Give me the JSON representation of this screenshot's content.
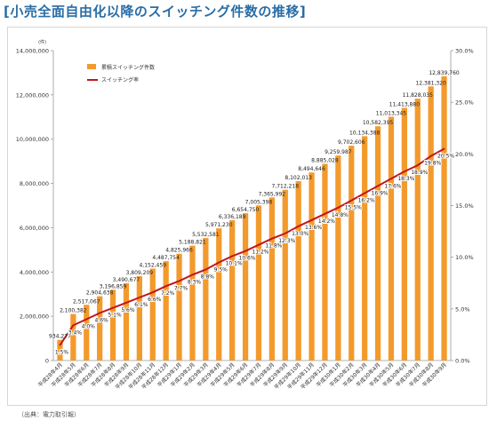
{
  "title": "[小売全面自由化以降のスイッチング件数の推移]",
  "source": "（出典：電力取引報）",
  "chart_data": {
    "type": "bar",
    "y_unit_label": "(件)",
    "categories": [
      "平成28年4月",
      "平成28年5月",
      "平成28年6月",
      "平成28年7月",
      "平成28年8月",
      "平成28年9月",
      "平成28年10月",
      "平成28年11月",
      "平成28年12月",
      "平成29年1月",
      "平成29年2月",
      "平成29年3月",
      "平成29年4月",
      "平成29年5月",
      "平成29年6月",
      "平成29年7月",
      "平成29年8月",
      "平成29年9月",
      "平成29年10月",
      "平成29年11月",
      "平成29年12月",
      "平成30年1月",
      "平成30年2月",
      "平成30年3月",
      "平成30年4月",
      "平成30年5月",
      "平成30年6月",
      "平成30年7月",
      "平成30年8月",
      "平成30年9月"
    ],
    "series": [
      {
        "name": "累積スイッチング件数",
        "axis": "left",
        "color": "#f39a2c",
        "values": [
          934277,
          2100382,
          2517067,
          2904638,
          3196859,
          3490677,
          3809209,
          4152459,
          4487754,
          4825966,
          5188821,
          5532581,
          5971230,
          6336189,
          6654750,
          7005398,
          7365992,
          7712218,
          8102013,
          8494646,
          8885028,
          9259987,
          9702606,
          10134388,
          10582395,
          11013345,
          11413880,
          11828035,
          12381320,
          12839760
        ],
        "value_labels": [
          "934,277",
          "2,100,382",
          "2,517,067",
          "2,904,638",
          "3,196,859",
          "3,490,677",
          "3,809,209",
          "4,152,459",
          "4,487,754",
          "4,825,966",
          "5,188,821",
          "5,532,581",
          "5,971,230",
          "6,336,189",
          "6,654,750",
          "7,005,398",
          "7,365,992",
          "7,712,218",
          "8,102,013",
          "8,494,646",
          "8,885,028",
          "9,259,987",
          "9,702,606",
          "10,134,388",
          "10,582,395",
          "11,013,345",
          "11,413,880",
          "11,828,035",
          "12,381,320",
          "12,839,760"
        ]
      },
      {
        "name": "スイッチング率",
        "type": "line",
        "axis": "right",
        "color": "#c0161c",
        "values": [
          1.5,
          3.4,
          4.0,
          4.6,
          5.1,
          5.6,
          6.1,
          6.6,
          7.2,
          7.7,
          8.3,
          8.8,
          9.5,
          10.1,
          10.6,
          11.2,
          11.8,
          12.3,
          13.0,
          13.6,
          14.2,
          14.8,
          15.5,
          16.2,
          16.9,
          17.6,
          18.3,
          18.9,
          19.8,
          20.5
        ],
        "value_labels": [
          "1.5%",
          "3.4%",
          "4.0%",
          "4.6%",
          "5.1%",
          "5.6%",
          "6.1%",
          "6.6%",
          "7.2%",
          "7.7%",
          "8.3%",
          "8.8%",
          "9.5%",
          "10.1%",
          "10.6%",
          "11.2%",
          "11.8%",
          "12.3%",
          "13.0%",
          "13.6%",
          "14.2%",
          "14.8%",
          "15.5%",
          "16.2%",
          "16.9%",
          "17.6%",
          "18.3%",
          "18.9%",
          "19.8%",
          "20.5%"
        ]
      }
    ],
    "y_left": {
      "range": [
        0,
        14000000
      ],
      "ticks": [
        "0",
        "2,000,000",
        "4,000,000",
        "6,000,000",
        "8,000,000",
        "10,000,000",
        "12,000,000",
        "14,000,000"
      ]
    },
    "y_right": {
      "range": [
        0,
        30
      ],
      "ticks": [
        "0.0%",
        "5.0%",
        "10.0%",
        "15.0%",
        "20.0%",
        "25.0%",
        "30.0%"
      ]
    },
    "grid": false,
    "legend_position": "top-left"
  }
}
